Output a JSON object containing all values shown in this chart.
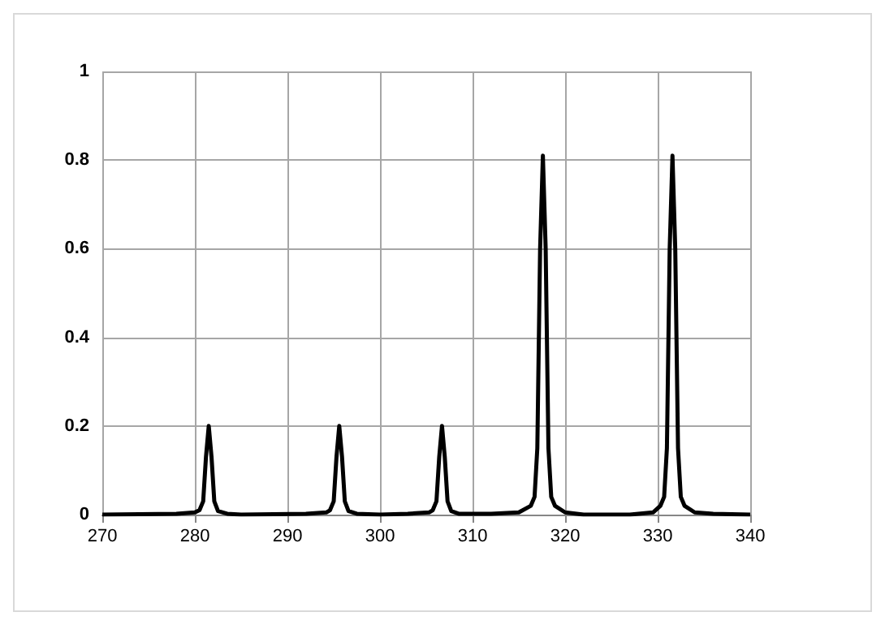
{
  "chart_data": {
    "type": "line",
    "x": [
      270,
      278,
      280,
      280.5,
      280.9,
      281.2,
      281.5,
      281.8,
      282.1,
      282.5,
      283.5,
      285,
      292,
      294.2,
      294.6,
      295,
      295.3,
      295.6,
      295.9,
      296.2,
      296.6,
      297.5,
      300,
      303,
      305.3,
      305.7,
      306.1,
      306.4,
      306.7,
      307,
      307.3,
      307.7,
      308.5,
      312,
      315,
      316.3,
      316.7,
      317,
      317.3,
      317.6,
      317.9,
      318.2,
      318.5,
      318.9,
      320,
      322,
      327,
      329.5,
      330.3,
      330.7,
      331,
      331.3,
      331.6,
      331.9,
      332.2,
      332.5,
      332.9,
      334,
      336,
      340
    ],
    "series": [
      {
        "color": "#000000",
        "values": [
          0,
          0.002,
          0.005,
          0.01,
          0.03,
          0.13,
          0.2,
          0.13,
          0.03,
          0.008,
          0.002,
          0,
          0.002,
          0.005,
          0.01,
          0.03,
          0.13,
          0.2,
          0.13,
          0.03,
          0.008,
          0.002,
          0,
          0.002,
          0.005,
          0.01,
          0.03,
          0.13,
          0.2,
          0.13,
          0.03,
          0.008,
          0.002,
          0.002,
          0.005,
          0.02,
          0.04,
          0.15,
          0.6,
          0.81,
          0.6,
          0.15,
          0.04,
          0.02,
          0.005,
          0,
          0,
          0.005,
          0.02,
          0.04,
          0.15,
          0.6,
          0.81,
          0.6,
          0.15,
          0.04,
          0.02,
          0.005,
          0.002,
          0
        ]
      }
    ],
    "xlim": [
      270,
      340
    ],
    "xticks": [
      270,
      280,
      290,
      300,
      310,
      320,
      330,
      340
    ],
    "ylim": [
      0,
      1
    ],
    "yticks": [
      0,
      0.2,
      0.4,
      0.6,
      0.8,
      1
    ],
    "grid": true,
    "marker": "none",
    "line_style": "solid"
  }
}
